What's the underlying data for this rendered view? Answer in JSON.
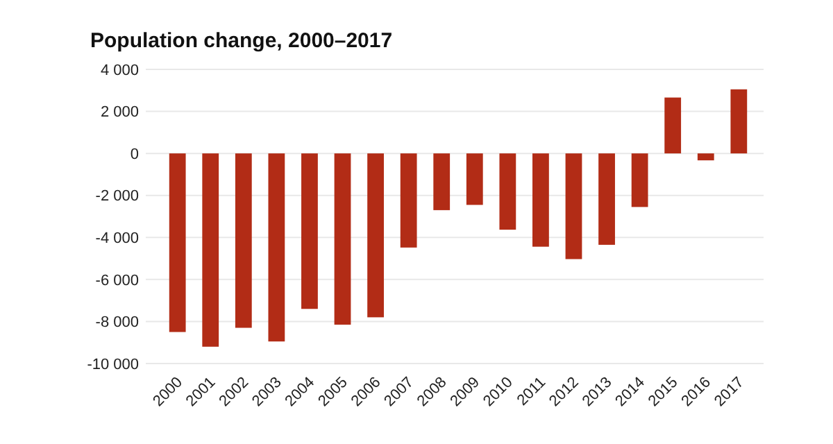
{
  "chart_data": {
    "type": "bar",
    "title": "Population change, 2000–2017",
    "categories": [
      "2000",
      "2001",
      "2002",
      "2003",
      "2004",
      "2005",
      "2006",
      "2007",
      "2008",
      "2009",
      "2010",
      "2011",
      "2012",
      "2013",
      "2014",
      "2015",
      "2016",
      "2017"
    ],
    "values": [
      -8500,
      -9200,
      -8300,
      -8950,
      -7400,
      -8150,
      -7800,
      -4480,
      -2700,
      -2450,
      -3630,
      -4440,
      -5030,
      -4350,
      -2550,
      2660,
      -330,
      3050
    ],
    "color": "#b22c16",
    "ylim": [
      -10000,
      4000
    ],
    "yticks": [
      {
        "value": -10000,
        "label": "-10 000"
      },
      {
        "value": -8000,
        "label": "-8 000"
      },
      {
        "value": -6000,
        "label": "-6 000"
      },
      {
        "value": -4000,
        "label": "-4 000"
      },
      {
        "value": -2000,
        "label": "-2 000"
      },
      0,
      {
        "value": 2000,
        "label": "2 000"
      },
      {
        "value": 4000,
        "label": "4 000"
      }
    ],
    "grid": true
  }
}
